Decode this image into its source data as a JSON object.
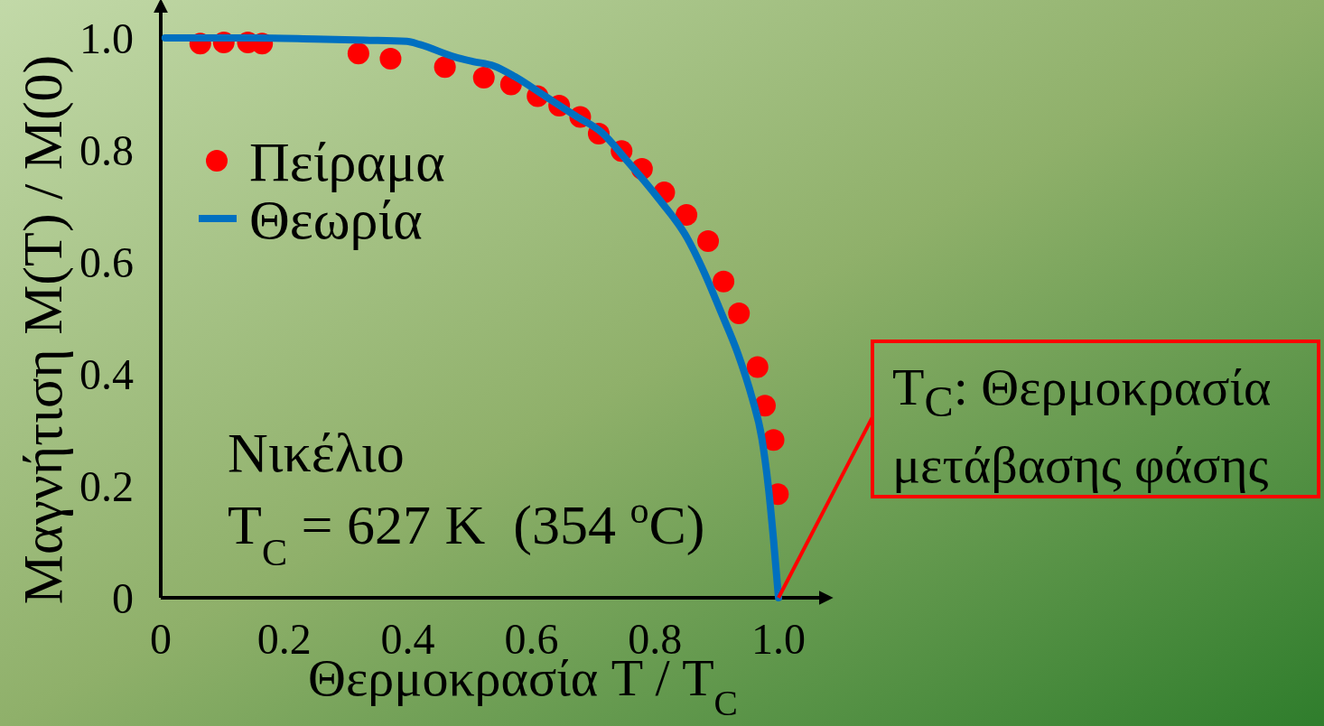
{
  "chart_data": {
    "type": "scatter",
    "xlabel": "Θερμοκρασία T / T$_{C}$",
    "ylabel": "Μαγνήτιση M(T) / M(0)",
    "xlim": [
      0,
      1.07
    ],
    "ylim": [
      0,
      1.05
    ],
    "xticks": [
      0,
      0.2,
      0.4,
      0.6,
      0.8,
      {
        "value": 1,
        "label": "1.0"
      }
    ],
    "yticks": [
      0,
      0.2,
      0.4,
      0.6,
      0.8,
      {
        "value": 1,
        "label": "1.0"
      }
    ],
    "legend": "top left",
    "series": [
      {
        "name": "Πείραμα",
        "type": "scatter",
        "color": "#ff0000",
        "marker": "circle",
        "x": [
          0.064,
          0.102,
          0.141,
          0.164,
          0.32,
          0.372,
          0.46,
          0.523,
          0.567,
          0.61,
          0.645,
          0.679,
          0.709,
          0.746,
          0.779,
          0.815,
          0.851,
          0.886,
          0.911,
          0.936,
          0.966,
          0.978,
          0.992,
          0.999
        ],
        "values": [
          0.99,
          0.992,
          0.992,
          0.99,
          0.972,
          0.963,
          0.948,
          0.929,
          0.917,
          0.896,
          0.879,
          0.859,
          0.829,
          0.798,
          0.766,
          0.724,
          0.684,
          0.637,
          0.565,
          0.508,
          0.412,
          0.343,
          0.282,
          0.185
        ]
      },
      {
        "name": "Θεωρία",
        "type": "line",
        "color": "#0070c0",
        "line_style": "solid",
        "x": [
          0.007,
          0.15,
          0.25,
          0.33,
          0.398,
          0.42,
          0.476,
          0.505,
          0.539,
          0.573,
          0.622,
          0.671,
          0.714,
          0.753,
          0.808,
          0.852,
          0.879,
          0.907,
          0.934,
          0.957,
          0.973,
          0.984,
          0.992,
          1.0
        ],
        "values": [
          1.0,
          1.0,
          0.998,
          0.996,
          0.994,
          0.988,
          0.966,
          0.958,
          0.95,
          0.931,
          0.896,
          0.861,
          0.831,
          0.783,
          0.71,
          0.643,
          0.583,
          0.51,
          0.437,
          0.358,
          0.285,
          0.194,
          0.103,
          0
        ]
      }
    ],
    "annotations": [
      "Νικέλιο",
      "T$_{C}$ = 627 K  (354 $^{o}$C)",
      {
        "text": "T$_{C}$: Θερμοκρασία μετάβασης φάσης",
        "x": 1.0,
        "y": 0
      }
    ]
  }
}
